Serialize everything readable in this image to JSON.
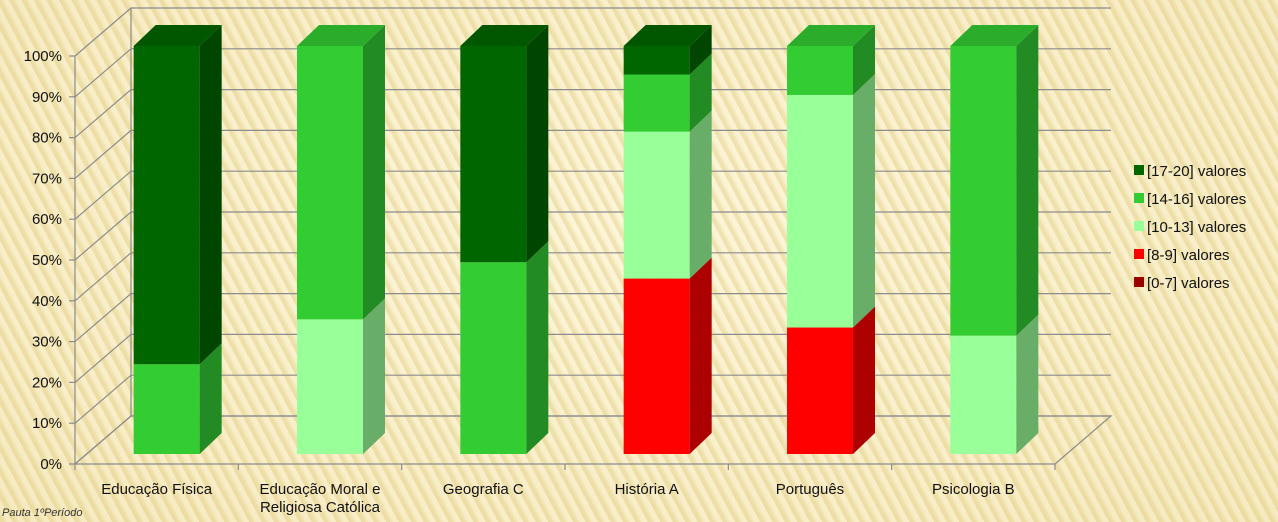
{
  "footer": {
    "text": "Pauta 1ºPeríodo"
  },
  "chart_data": {
    "type": "bar",
    "stacked": true,
    "three_d": true,
    "normalized_percent": true,
    "categories": [
      [
        "Educação Física"
      ],
      [
        "Educação Moral e",
        "Religiosa Católica"
      ],
      [
        "Geografia C"
      ],
      [
        "História A"
      ],
      [
        "Português"
      ],
      [
        "Psicologia B"
      ]
    ],
    "ylim": [
      0,
      100
    ],
    "yticks": [
      0,
      10,
      20,
      30,
      40,
      50,
      60,
      70,
      80,
      90,
      100
    ],
    "ytick_labels": [
      "0%",
      "10%",
      "20%",
      "30%",
      "40%",
      "50%",
      "60%",
      "70%",
      "80%",
      "90%",
      "100%"
    ],
    "grid": true,
    "legend_position": "right",
    "series": [
      {
        "name": "[0-7] valores",
        "color": "#9b0000",
        "values": [
          0,
          0,
          0,
          0,
          0,
          0
        ]
      },
      {
        "name": "[8-9] valores",
        "color": "#ff0000",
        "values": [
          0,
          0,
          0,
          43,
          31,
          0
        ]
      },
      {
        "name": "[10-13] valores",
        "color": "#99ff99",
        "values": [
          0,
          33,
          0,
          36,
          57,
          29
        ]
      },
      {
        "name": "[14-16] valores",
        "color": "#33cc33",
        "values": [
          22,
          67,
          47,
          14,
          12,
          71
        ]
      },
      {
        "name": "[17-20] valores",
        "color": "#006600",
        "values": [
          78,
          0,
          53,
          7,
          0,
          0
        ]
      }
    ]
  }
}
